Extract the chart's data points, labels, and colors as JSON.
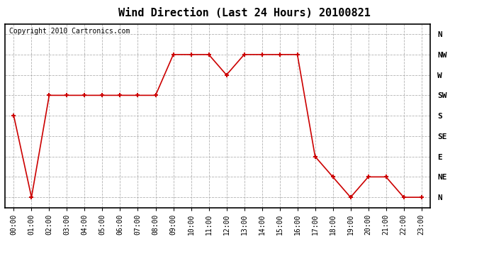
{
  "title": "Wind Direction (Last 24 Hours) 20100821",
  "copyright": "Copyright 2010 Cartronics.com",
  "x_labels": [
    "00:00",
    "01:00",
    "02:00",
    "03:00",
    "04:00",
    "05:00",
    "06:00",
    "07:00",
    "08:00",
    "09:00",
    "10:00",
    "11:00",
    "12:00",
    "13:00",
    "14:00",
    "15:00",
    "16:00",
    "17:00",
    "18:00",
    "19:00",
    "20:00",
    "21:00",
    "22:00",
    "23:00"
  ],
  "y_labels": [
    "N",
    "NE",
    "E",
    "SE",
    "S",
    "SW",
    "W",
    "NW",
    "N"
  ],
  "y_values": [
    0,
    45,
    90,
    135,
    180,
    225,
    270,
    315,
    360
  ],
  "data_x": [
    0,
    1,
    2,
    3,
    4,
    5,
    6,
    7,
    8,
    9,
    10,
    11,
    12,
    13,
    14,
    15,
    16,
    17,
    18,
    19,
    20,
    21,
    22,
    23
  ],
  "data_y": [
    180,
    0,
    225,
    225,
    225,
    225,
    225,
    225,
    225,
    315,
    315,
    315,
    270,
    315,
    315,
    315,
    315,
    90,
    45,
    0,
    45,
    45,
    0,
    0
  ],
  "line_color": "#cc0000",
  "marker": "+",
  "bg_color": "#ffffff",
  "plot_bg_color": "#ffffff",
  "grid_color": "#aaaaaa",
  "title_fontsize": 11,
  "copyright_fontsize": 7,
  "tick_fontsize": 7,
  "ytick_fontsize": 8
}
